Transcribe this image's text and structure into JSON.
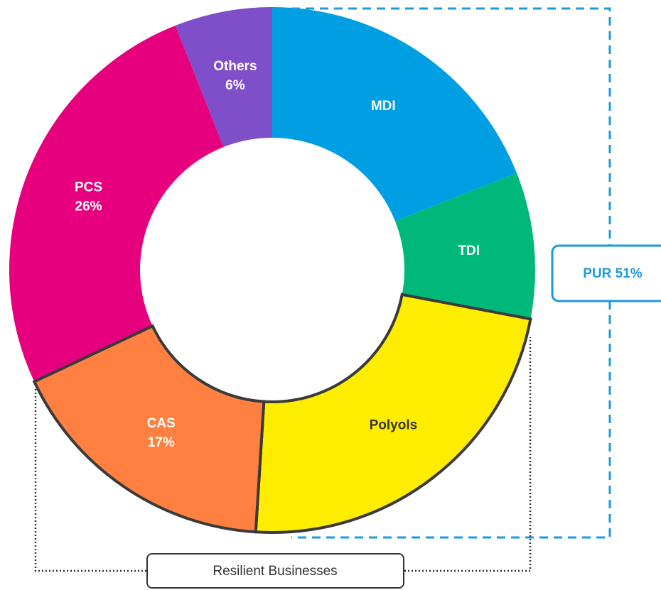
{
  "chart_data": {
    "type": "donut",
    "categories": [
      "MDI",
      "TDI",
      "Polyols",
      "CAS",
      "PCS",
      "Others"
    ],
    "values": [
      19,
      9,
      23,
      17,
      26,
      6
    ],
    "value_labels": [
      null,
      null,
      null,
      "17%",
      "26%",
      "6%"
    ],
    "colors": [
      "#009fe3",
      "#00b87a",
      "#ffed00",
      "#ff8040",
      "#e6007e",
      "#7f4fc9"
    ],
    "label_colors": [
      "#ffffff",
      "#ffffff",
      "#333333",
      "#ffffff",
      "#ffffff",
      "#ffffff"
    ],
    "outlined": [
      false,
      false,
      true,
      true,
      false,
      false
    ],
    "outline_color": "#3a3a3a",
    "annotations": [
      "PUR 51%",
      "Resilient Businesses"
    ]
  }
}
